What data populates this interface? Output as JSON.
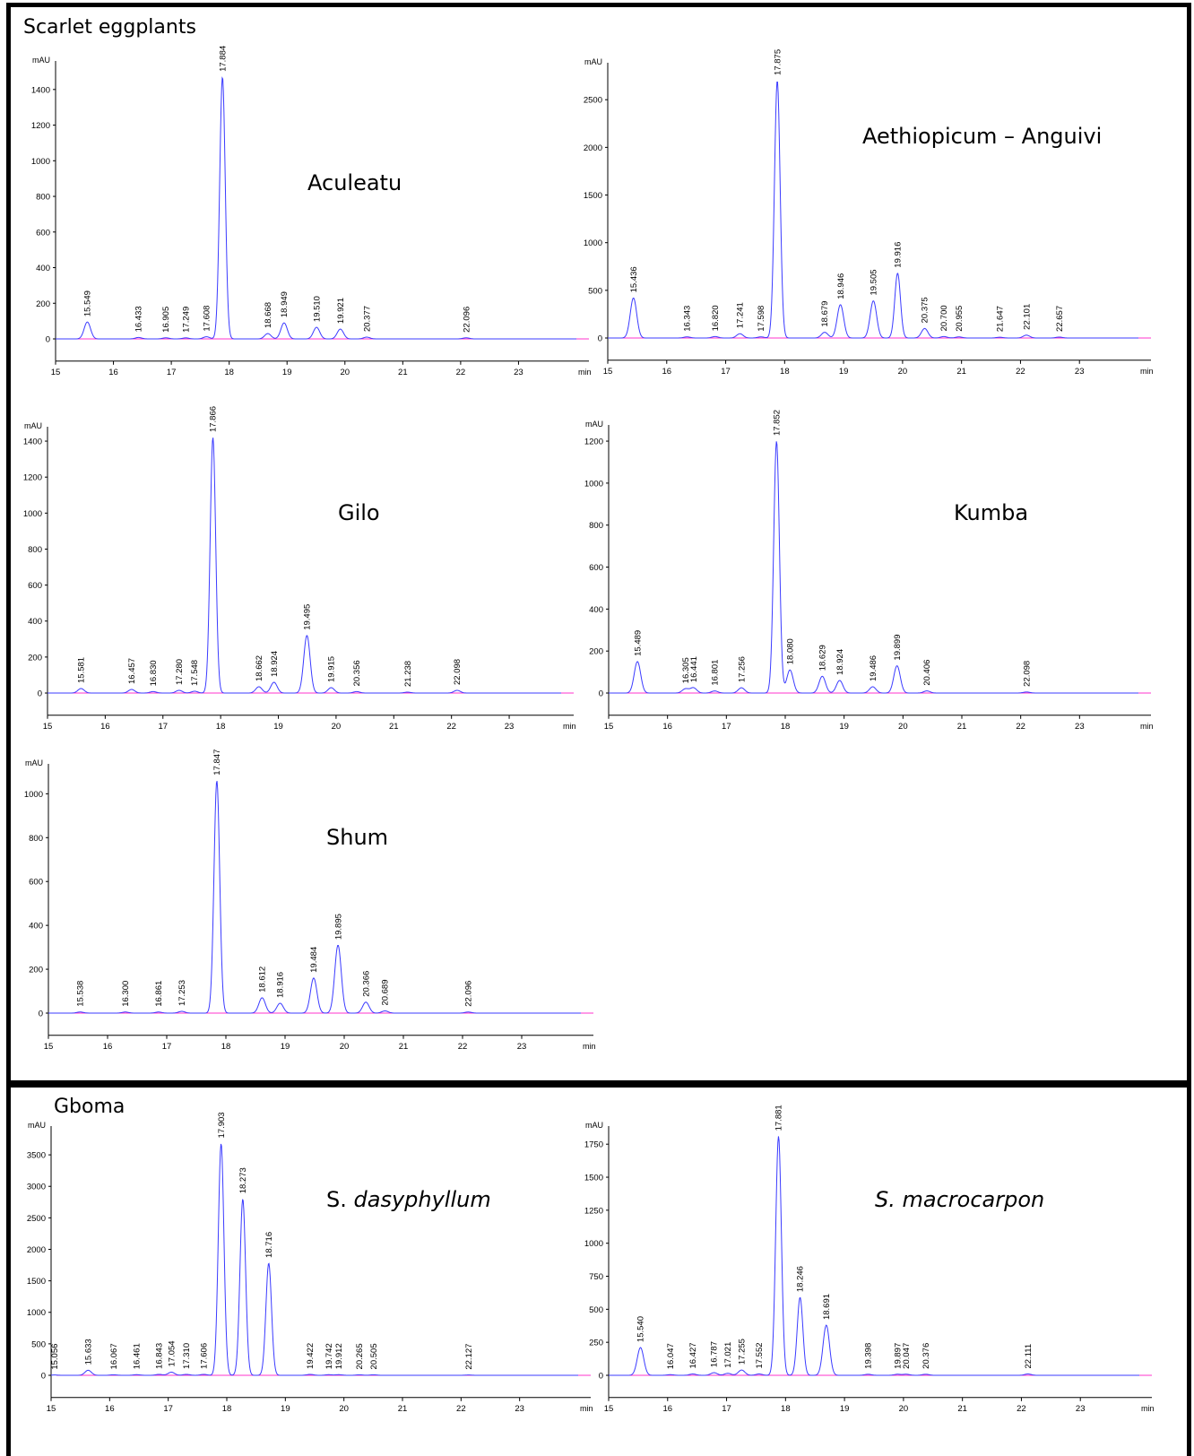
{
  "groups": {
    "scarlet": "Scarlet eggplants",
    "gboma": "Gboma"
  },
  "colors": {
    "trace": "#3b3bff",
    "baseline": "#ff33cc",
    "frame": "#000000"
  },
  "chart_data": [
    {
      "id": "aculeatu",
      "type": "line",
      "title": "Aculeatu",
      "ylabel": "mAU",
      "xlabel": "min",
      "xlim": [
        15,
        24
      ],
      "ylim": [
        -40,
        1540
      ],
      "xticks": [
        15,
        16,
        17,
        18,
        19,
        20,
        21,
        22,
        23
      ],
      "yticks": [
        0,
        200,
        400,
        600,
        800,
        1000,
        1200,
        1400
      ],
      "peaks": [
        {
          "rt": 15.549,
          "height": 95
        },
        {
          "rt": 16.433,
          "height": 8
        },
        {
          "rt": 16.905,
          "height": 6
        },
        {
          "rt": 17.249,
          "height": 6
        },
        {
          "rt": 17.608,
          "height": 12
        },
        {
          "rt": 17.884,
          "height": 1470
        },
        {
          "rt": 18.668,
          "height": 30
        },
        {
          "rt": 18.949,
          "height": 90
        },
        {
          "rt": 19.51,
          "height": 65
        },
        {
          "rt": 19.921,
          "height": 55
        },
        {
          "rt": 20.377,
          "height": 10
        },
        {
          "rt": 22.096,
          "height": 6
        }
      ]
    },
    {
      "id": "aethiopicum",
      "type": "line",
      "title": "Aethiopicum – Anguivi",
      "ylabel": "mAU",
      "xlabel": "min",
      "xlim": [
        15,
        24
      ],
      "ylim": [
        -50,
        2850
      ],
      "xticks": [
        15,
        16,
        17,
        18,
        19,
        20,
        21,
        22,
        23
      ],
      "yticks": [
        0,
        500,
        1000,
        1500,
        2000,
        2500
      ],
      "peaks": [
        {
          "rt": 15.436,
          "height": 420
        },
        {
          "rt": 16.343,
          "height": 12
        },
        {
          "rt": 16.82,
          "height": 15
        },
        {
          "rt": 17.241,
          "height": 45
        },
        {
          "rt": 17.598,
          "height": 12
        },
        {
          "rt": 17.875,
          "height": 2700
        },
        {
          "rt": 18.679,
          "height": 60
        },
        {
          "rt": 18.946,
          "height": 350
        },
        {
          "rt": 19.505,
          "height": 390
        },
        {
          "rt": 19.916,
          "height": 680
        },
        {
          "rt": 20.375,
          "height": 100
        },
        {
          "rt": 20.7,
          "height": 15
        },
        {
          "rt": 20.955,
          "height": 12
        },
        {
          "rt": 21.647,
          "height": 8
        },
        {
          "rt": 22.101,
          "height": 30
        },
        {
          "rt": 22.657,
          "height": 10
        }
      ]
    },
    {
      "id": "gilo",
      "type": "line",
      "title": "Gilo",
      "ylabel": "mAU",
      "xlabel": "min",
      "xlim": [
        15,
        23.9
      ],
      "ylim": [
        -40,
        1460
      ],
      "xticks": [
        15,
        16,
        17,
        18,
        19,
        20,
        21,
        22,
        23
      ],
      "yticks": [
        0,
        200,
        400,
        600,
        800,
        1000,
        1200,
        1400
      ],
      "peaks": [
        {
          "rt": 15.581,
          "height": 25
        },
        {
          "rt": 16.457,
          "height": 20
        },
        {
          "rt": 16.83,
          "height": 8
        },
        {
          "rt": 17.28,
          "height": 15
        },
        {
          "rt": 17.548,
          "height": 10
        },
        {
          "rt": 17.866,
          "height": 1420
        },
        {
          "rt": 18.662,
          "height": 35
        },
        {
          "rt": 18.924,
          "height": 60
        },
        {
          "rt": 19.495,
          "height": 320
        },
        {
          "rt": 19.915,
          "height": 30
        },
        {
          "rt": 20.356,
          "height": 8
        },
        {
          "rt": 21.238,
          "height": 5
        },
        {
          "rt": 22.098,
          "height": 15
        }
      ]
    },
    {
      "id": "kumba",
      "type": "line",
      "title": "Kumba",
      "ylabel": "mAU",
      "xlabel": "min",
      "xlim": [
        15,
        24
      ],
      "ylim": [
        -40,
        1260
      ],
      "xticks": [
        15,
        16,
        17,
        18,
        19,
        20,
        21,
        22,
        23
      ],
      "yticks": [
        0,
        200,
        400,
        600,
        800,
        1000,
        1200
      ],
      "peaks": [
        {
          "rt": 15.489,
          "height": 150
        },
        {
          "rt": 16.305,
          "height": 20
        },
        {
          "rt": 16.441,
          "height": 25
        },
        {
          "rt": 16.801,
          "height": 10
        },
        {
          "rt": 17.256,
          "height": 25
        },
        {
          "rt": 17.852,
          "height": 1200
        },
        {
          "rt": 18.08,
          "height": 110
        },
        {
          "rt": 18.629,
          "height": 80
        },
        {
          "rt": 18.924,
          "height": 60
        },
        {
          "rt": 19.486,
          "height": 30
        },
        {
          "rt": 19.899,
          "height": 130
        },
        {
          "rt": 20.406,
          "height": 10
        },
        {
          "rt": 22.098,
          "height": 5
        }
      ]
    },
    {
      "id": "shum",
      "type": "line",
      "title": "Shum",
      "ylabel": "mAU",
      "xlabel": "min",
      "xlim": [
        15,
        24
      ],
      "ylim": [
        -30,
        1120
      ],
      "xticks": [
        15,
        16,
        17,
        18,
        19,
        20,
        21,
        22,
        23
      ],
      "yticks": [
        0,
        200,
        400,
        600,
        800,
        1000
      ],
      "peaks": [
        {
          "rt": 15.538,
          "height": 5
        },
        {
          "rt": 16.3,
          "height": 5
        },
        {
          "rt": 16.861,
          "height": 5
        },
        {
          "rt": 17.253,
          "height": 8
        },
        {
          "rt": 17.847,
          "height": 1060
        },
        {
          "rt": 18.612,
          "height": 70
        },
        {
          "rt": 18.916,
          "height": 45
        },
        {
          "rt": 19.484,
          "height": 160
        },
        {
          "rt": 19.895,
          "height": 310
        },
        {
          "rt": 20.366,
          "height": 50
        },
        {
          "rt": 20.689,
          "height": 10
        },
        {
          "rt": 22.096,
          "height": 5
        }
      ]
    },
    {
      "id": "dasyphyllum",
      "type": "line",
      "title_prefix": "S. ",
      "title_italic": "dasyphyllum",
      "ylabel": "mAU",
      "xlabel": "min",
      "xlim": [
        15,
        24
      ],
      "ylim": [
        -100,
        3900
      ],
      "xticks": [
        15,
        16,
        17,
        18,
        19,
        20,
        21,
        22,
        23
      ],
      "yticks": [
        0,
        500,
        1000,
        1500,
        2000,
        2500,
        3000,
        3500
      ],
      "peaks": [
        {
          "rt": 15.056,
          "height": 5
        },
        {
          "rt": 15.633,
          "height": 80
        },
        {
          "rt": 16.067,
          "height": 8
        },
        {
          "rt": 16.461,
          "height": 10
        },
        {
          "rt": 16.843,
          "height": 15
        },
        {
          "rt": 17.054,
          "height": 50
        },
        {
          "rt": 17.31,
          "height": 15
        },
        {
          "rt": 17.606,
          "height": 15
        },
        {
          "rt": 17.903,
          "height": 3680
        },
        {
          "rt": 18.273,
          "height": 2800
        },
        {
          "rt": 18.716,
          "height": 1780
        },
        {
          "rt": 19.422,
          "height": 15
        },
        {
          "rt": 19.742,
          "height": 10
        },
        {
          "rt": 19.912,
          "height": 10
        },
        {
          "rt": 20.265,
          "height": 8
        },
        {
          "rt": 20.505,
          "height": 8
        },
        {
          "rt": 22.127,
          "height": 5
        }
      ]
    },
    {
      "id": "macrocarpon",
      "type": "line",
      "title_italic": "S. macrocarpon",
      "ylabel": "mAU",
      "xlabel": "min",
      "xlim": [
        15,
        24
      ],
      "ylim": [
        -50,
        1860
      ],
      "xticks": [
        15,
        16,
        17,
        18,
        19,
        20,
        21,
        22,
        23
      ],
      "yticks": [
        0,
        250,
        500,
        750,
        1000,
        1250,
        1500,
        1750
      ],
      "peaks": [
        {
          "rt": 15.54,
          "height": 210
        },
        {
          "rt": 16.047,
          "height": 5
        },
        {
          "rt": 16.427,
          "height": 10
        },
        {
          "rt": 16.787,
          "height": 20
        },
        {
          "rt": 17.021,
          "height": 15
        },
        {
          "rt": 17.255,
          "height": 40
        },
        {
          "rt": 17.552,
          "height": 10
        },
        {
          "rt": 17.881,
          "height": 1810
        },
        {
          "rt": 18.246,
          "height": 590
        },
        {
          "rt": 18.691,
          "height": 380
        },
        {
          "rt": 19.398,
          "height": 8
        },
        {
          "rt": 19.897,
          "height": 8
        },
        {
          "rt": 20.047,
          "height": 8
        },
        {
          "rt": 20.376,
          "height": 8
        },
        {
          "rt": 22.111,
          "height": 10
        }
      ]
    }
  ]
}
